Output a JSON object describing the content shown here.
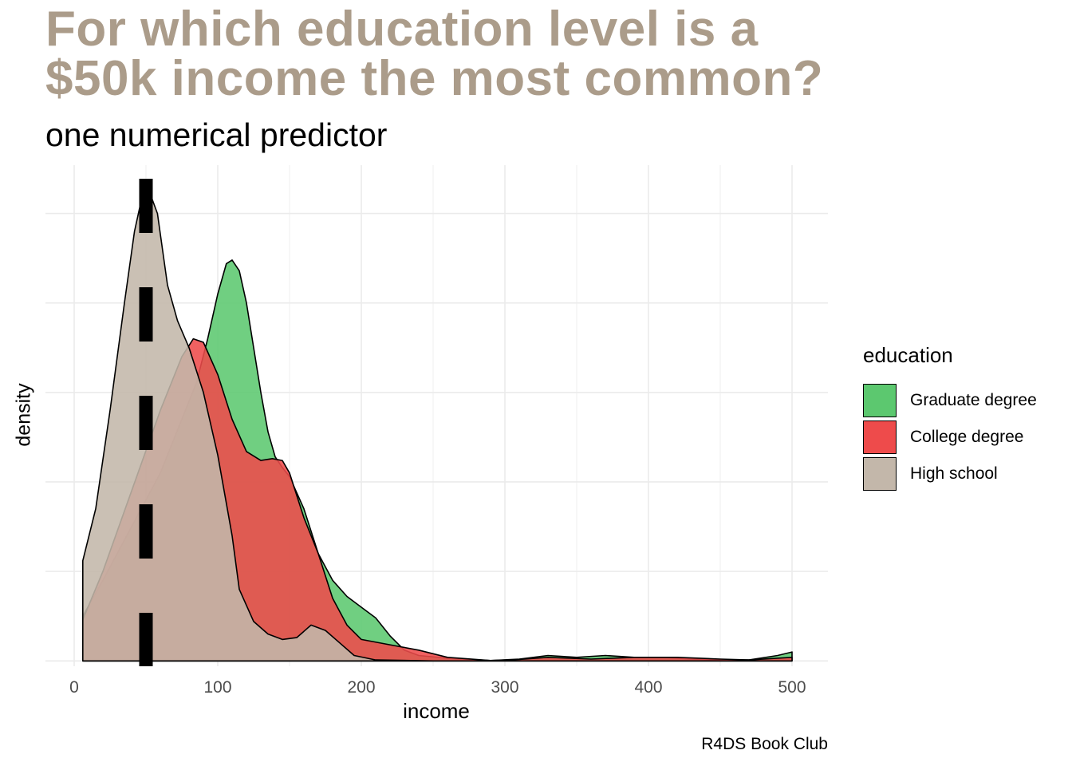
{
  "title_line1": "For which education level is a",
  "title_line2": "$50k income the most common?",
  "subtitle": "one numerical predictor",
  "caption": "R4DS Book Club",
  "legend": {
    "title": "education",
    "items": [
      {
        "label": "Graduate degree",
        "color": "#5cc86f"
      },
      {
        "label": "College degree",
        "color": "#ee4b4b"
      },
      {
        "label": "High school",
        "color": "#c3b7aa"
      }
    ]
  },
  "colors": {
    "title": "#ab9c8a",
    "gridline": "#ebebeb",
    "reference_line": "#000000"
  },
  "chart_data": {
    "type": "area",
    "subtype": "density",
    "title": "For which education level is a $50k income the most common?",
    "subtitle": "one numerical predictor",
    "xlabel": "income",
    "ylabel": "density",
    "caption": "R4DS Book Club",
    "xlim": [
      -20,
      525
    ],
    "ylim": [
      -0.0003,
      0.0277
    ],
    "x_ticks": [
      0,
      100,
      200,
      300,
      400,
      500
    ],
    "y_ticks_shown": false,
    "grid": true,
    "legend_position": "right",
    "reference_line": {
      "x": 50,
      "style": "dashed",
      "color": "#000000"
    },
    "series": [
      {
        "name": "Graduate degree",
        "color": "#5cc86f",
        "points": [
          [
            6,
            0.0025
          ],
          [
            20,
            0.0045
          ],
          [
            40,
            0.0075
          ],
          [
            60,
            0.0105
          ],
          [
            75,
            0.0135
          ],
          [
            85,
            0.0155
          ],
          [
            93,
            0.018
          ],
          [
            100,
            0.0205
          ],
          [
            106,
            0.0222
          ],
          [
            110,
            0.0224
          ],
          [
            115,
            0.0218
          ],
          [
            120,
            0.02
          ],
          [
            125,
            0.0175
          ],
          [
            130,
            0.015
          ],
          [
            135,
            0.0128
          ],
          [
            140,
            0.0114
          ],
          [
            145,
            0.0108
          ],
          [
            150,
            0.0103
          ],
          [
            160,
            0.0085
          ],
          [
            170,
            0.006
          ],
          [
            180,
            0.0045
          ],
          [
            190,
            0.0036
          ],
          [
            200,
            0.003
          ],
          [
            210,
            0.0024
          ],
          [
            220,
            0.0014
          ],
          [
            230,
            0.0006
          ],
          [
            240,
            0.0003
          ],
          [
            260,
            0.00015
          ],
          [
            290,
            2e-05
          ],
          [
            310,
            0.0001
          ],
          [
            330,
            0.0003
          ],
          [
            350,
            0.0002
          ],
          [
            370,
            0.0003
          ],
          [
            390,
            0.0002
          ],
          [
            410,
            0.0002
          ],
          [
            430,
            0.0001
          ],
          [
            450,
            5e-05
          ],
          [
            470,
            5e-05
          ],
          [
            490,
            0.0003
          ],
          [
            500,
            0.0005
          ]
        ]
      },
      {
        "name": "College degree",
        "color": "#ee4b4b",
        "points": [
          [
            6,
            0.0023
          ],
          [
            20,
            0.005
          ],
          [
            40,
            0.0095
          ],
          [
            60,
            0.014
          ],
          [
            75,
            0.017
          ],
          [
            83,
            0.018
          ],
          [
            90,
            0.0178
          ],
          [
            100,
            0.016
          ],
          [
            110,
            0.0135
          ],
          [
            120,
            0.0117
          ],
          [
            130,
            0.0112
          ],
          [
            138,
            0.0113
          ],
          [
            145,
            0.0112
          ],
          [
            150,
            0.0105
          ],
          [
            160,
            0.008
          ],
          [
            170,
            0.006
          ],
          [
            180,
            0.0035
          ],
          [
            190,
            0.002
          ],
          [
            200,
            0.0012
          ],
          [
            220,
            0.0009
          ],
          [
            240,
            0.0006
          ],
          [
            260,
            0.0002
          ],
          [
            290,
            2e-05
          ],
          [
            310,
            8e-05
          ],
          [
            330,
            0.0002
          ],
          [
            360,
            0.0001
          ],
          [
            390,
            0.0002
          ],
          [
            420,
            0.0002
          ],
          [
            450,
            0.0001
          ],
          [
            470,
            5e-05
          ],
          [
            500,
            0.0002
          ]
        ]
      },
      {
        "name": "High school",
        "color": "#c3b7aa",
        "points": [
          [
            6,
            0.0056
          ],
          [
            15,
            0.0085
          ],
          [
            25,
            0.014
          ],
          [
            35,
            0.02
          ],
          [
            42,
            0.024
          ],
          [
            48,
            0.0262
          ],
          [
            52,
            0.0263
          ],
          [
            58,
            0.025
          ],
          [
            65,
            0.021
          ],
          [
            72,
            0.019
          ],
          [
            80,
            0.0175
          ],
          [
            90,
            0.015
          ],
          [
            100,
            0.0115
          ],
          [
            110,
            0.007
          ],
          [
            115,
            0.004
          ],
          [
            125,
            0.0022
          ],
          [
            135,
            0.0015
          ],
          [
            145,
            0.0012
          ],
          [
            155,
            0.0013
          ],
          [
            165,
            0.002
          ],
          [
            175,
            0.0017
          ],
          [
            185,
            0.001
          ],
          [
            195,
            0.0003
          ],
          [
            210,
            5e-05
          ],
          [
            250,
            0.0
          ],
          [
            300,
            0.0
          ],
          [
            500,
            0.0
          ]
        ]
      }
    ]
  }
}
